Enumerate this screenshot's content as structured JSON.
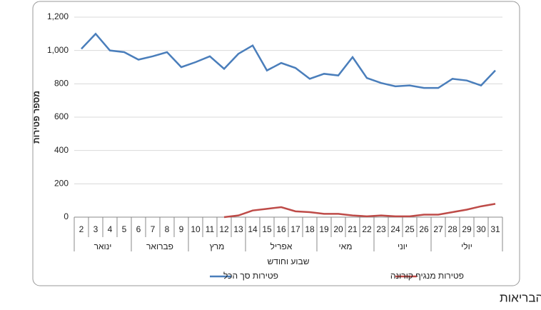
{
  "chart_data": {
    "type": "line",
    "y_label": "מספר פטירות",
    "x_label": "שבוע וחודש",
    "footnote": "* לפי נתוני משרד הבריאות",
    "groups": [
      {
        "label": "ינואר",
        "categories": [
          "2",
          "3",
          "4",
          "5"
        ]
      },
      {
        "label": "פברואר",
        "categories": [
          "6",
          "7",
          "8",
          "9"
        ]
      },
      {
        "label": "מרץ",
        "categories": [
          "10",
          "11",
          "12",
          "13"
        ]
      },
      {
        "label": "אפריל",
        "categories": [
          "14",
          "15",
          "16",
          "17",
          "18"
        ]
      },
      {
        "label": "מאי",
        "categories": [
          "19",
          "20",
          "21",
          "22"
        ]
      },
      {
        "label": "יוני",
        "categories": [
          "23",
          "24",
          "25",
          "26"
        ]
      },
      {
        "label": "יולי",
        "categories": [
          "27",
          "28",
          "29",
          "30",
          "31"
        ]
      }
    ],
    "series": [
      {
        "name": "פטירות סך הכל",
        "color": "#4a7ebb",
        "values": [
          1010,
          1100,
          1000,
          990,
          945,
          965,
          990,
          900,
          930,
          965,
          890,
          980,
          1030,
          880,
          925,
          895,
          830,
          860,
          850,
          960,
          835,
          805,
          785,
          790,
          775,
          775,
          830,
          820,
          790,
          880
        ]
      },
      {
        "name": "פטירות מנגיף קורונה",
        "color": "#be4b48",
        "values": [
          null,
          null,
          null,
          null,
          null,
          null,
          null,
          null,
          null,
          null,
          0,
          10,
          40,
          50,
          60,
          35,
          30,
          20,
          20,
          10,
          5,
          10,
          5,
          5,
          15,
          15,
          30,
          45,
          65,
          80
        ]
      }
    ],
    "ylim": [
      0,
      1200
    ],
    "yticks": [
      0,
      200,
      400,
      600,
      800,
      {
        "value": 1000,
        "label": "1,000"
      },
      {
        "value": 1200,
        "label": "1,200"
      }
    ],
    "grid": true
  }
}
